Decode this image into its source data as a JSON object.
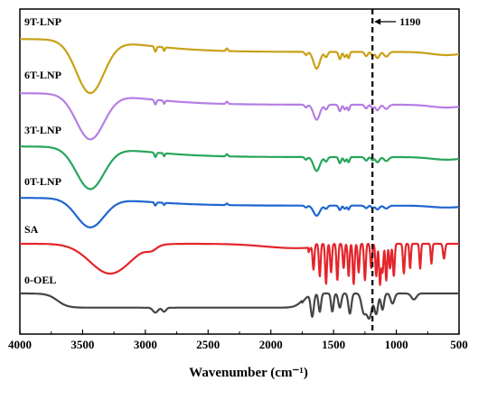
{
  "chart_data": {
    "type": "line",
    "title": "",
    "xlabel": "Wavenumber (cm⁻¹)",
    "ylabel": "",
    "xlim": [
      4000,
      500
    ],
    "x_reversed": true,
    "x_ticks": [
      4000,
      3500,
      3000,
      2500,
      2000,
      1500,
      1000,
      500
    ],
    "x_tick_labels": [
      "4000",
      "3500",
      "3000",
      "2500",
      "2000",
      "1500",
      "1000",
      "500"
    ],
    "grid": false,
    "legend": "none",
    "series": [
      {
        "name": "9T-LNP",
        "color": "#c9a117"
      },
      {
        "name": "6T-LNP",
        "color": "#b57ee3"
      },
      {
        "name": "3T-LNP",
        "color": "#27a55a"
      },
      {
        "name": "0T-LNP",
        "color": "#1f66cf"
      },
      {
        "name": "SA",
        "color": "#e4252b"
      },
      {
        "name": "0-OEL",
        "color": "#454545"
      }
    ],
    "annotations": [
      {
        "type": "vertical-dashed-line",
        "x": 1190,
        "label": "1190"
      }
    ]
  }
}
